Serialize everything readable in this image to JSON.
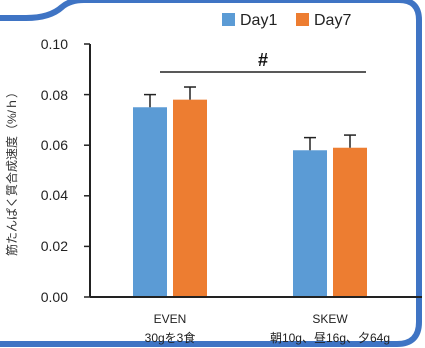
{
  "colors": {
    "frame": "#3f74c4",
    "day1": "#5b9bd5",
    "day7": "#ed7d31",
    "axis": "#222222",
    "errorbar": "#222222"
  },
  "chart_data": {
    "type": "bar",
    "ylabel": "筋たんぱく質合成速度（%/ｈ）",
    "ylim": [
      0,
      0.1
    ],
    "yticks": [
      "0.00",
      "0.02",
      "0.04",
      "0.06",
      "0.08",
      "0.10"
    ],
    "grid": false,
    "legend": "top-right",
    "categories": [
      "EVEN",
      "SKEW"
    ],
    "category_sublabels": [
      "30gを3食",
      "朝10g、昼16g、夕64g"
    ],
    "series": [
      {
        "name": "Day1",
        "values": [
          0.075,
          0.058
        ],
        "errors": [
          0.005,
          0.005
        ]
      },
      {
        "name": "Day7",
        "values": [
          0.078,
          0.059
        ],
        "errors": [
          0.005,
          0.005
        ]
      }
    ],
    "annotations": [
      {
        "text": "#",
        "type": "significance-bracket",
        "between": [
          "EVEN",
          "SKEW"
        ]
      }
    ]
  }
}
